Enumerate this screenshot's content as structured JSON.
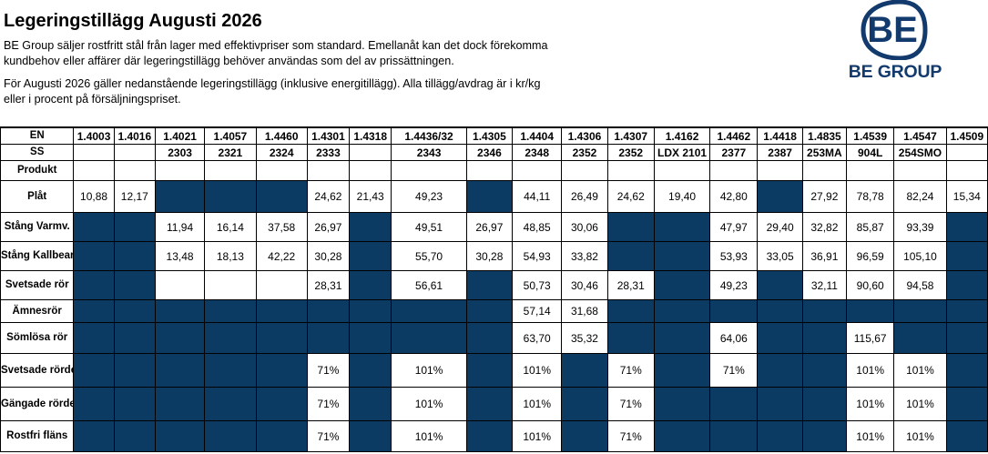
{
  "header": {
    "title": "Legeringstillägg Augusti 2026",
    "intro1": "BE Group säljer rostfritt stål från lager med effektivpriser som standard. Emellanåt kan det dock förekomma kundbehov eller affärer där legeringstillägg behöver användas som del av prissättningen.",
    "intro2": "För Augusti 2026 gäller nedanstående legeringstillägg (inklusive energitillägg). Alla tillägg/avdrag är i kr/kg eller i procent på försäljningspriset."
  },
  "logo": {
    "mark": "BE",
    "text": "BE GROUP",
    "color": "#123a6d"
  },
  "table": {
    "en_label": "EN",
    "ss_label": "SS",
    "product_label": "Produkt",
    "fill_color": "#0b3a63",
    "columns": [
      {
        "en": "1.4003",
        "ss": ""
      },
      {
        "en": "1.4016",
        "ss": ""
      },
      {
        "en": "1.4021",
        "ss": "2303"
      },
      {
        "en": "1.4057",
        "ss": "2321"
      },
      {
        "en": "1.4460",
        "ss": "2324"
      },
      {
        "en": "1.4301",
        "ss": "2333"
      },
      {
        "en": "1.4318",
        "ss": ""
      },
      {
        "en": "1.4436/32",
        "ss": "2343"
      },
      {
        "en": "1.4305",
        "ss": "2346"
      },
      {
        "en": "1.4404",
        "ss": "2348"
      },
      {
        "en": "1.4306",
        "ss": "2352"
      },
      {
        "en": "1.4307",
        "ss": "2352"
      },
      {
        "en": "1.4162",
        "ss": "LDX 2101"
      },
      {
        "en": "1.4462",
        "ss": "2377"
      },
      {
        "en": "1.4418",
        "ss": "2387"
      },
      {
        "en": "1.4835",
        "ss": "253MA"
      },
      {
        "en": "1.4539",
        "ss": "904L"
      },
      {
        "en": "1.4547",
        "ss": "254SMO"
      },
      {
        "en": "1.4509",
        "ss": ""
      }
    ],
    "rows": [
      {
        "cls": "r-plat",
        "label": "Plåt",
        "cells": [
          "10,88",
          "12,17",
          null,
          null,
          null,
          "24,62",
          "21,43",
          "49,23",
          null,
          "44,11",
          "26,49",
          "24,62",
          "19,40",
          "42,80",
          null,
          "27,92",
          "78,78",
          "82,24",
          "15,34"
        ]
      },
      {
        "cls": "r-stv",
        "label": "Stång Varmv.",
        "cells": [
          null,
          null,
          "11,94",
          "16,14",
          "37,58",
          "26,97",
          null,
          "49,51",
          "26,97",
          "48,85",
          "30,06",
          null,
          null,
          "47,97",
          "29,40",
          "32,82",
          "85,87",
          "93,39",
          null
        ]
      },
      {
        "cls": "r-stk",
        "label": "Stång Kallbearb.",
        "cells": [
          null,
          null,
          "13,48",
          "18,13",
          "42,22",
          "30,28",
          null,
          "55,70",
          "30,28",
          "54,93",
          "33,82",
          null,
          null,
          "53,93",
          "33,05",
          "36,91",
          "96,59",
          "105,10",
          null
        ]
      },
      {
        "cls": "r-svr",
        "label": "Svetsade rör",
        "cells": [
          null,
          null,
          "",
          "",
          "",
          "28,31",
          null,
          "56,61",
          null,
          "50,73",
          "30,46",
          "28,31",
          null,
          "49,23",
          null,
          "32,11",
          "90,60",
          "94,58",
          null
        ]
      },
      {
        "cls": "r-amn",
        "label": "Ämnesrör",
        "cells": [
          null,
          null,
          null,
          null,
          null,
          null,
          null,
          null,
          null,
          "57,14",
          "31,68",
          null,
          null,
          null,
          null,
          null,
          null,
          null,
          null
        ]
      },
      {
        "cls": "r-som",
        "label": "Sömlösa rör",
        "cells": [
          null,
          null,
          null,
          null,
          null,
          null,
          null,
          null,
          null,
          "63,70",
          "35,32",
          null,
          null,
          "64,06",
          null,
          null,
          "115,67",
          null,
          null
        ]
      },
      {
        "cls": "r-svd",
        "label": "Svetsade rördelar",
        "cells": [
          null,
          null,
          null,
          null,
          null,
          "71%",
          null,
          "101%",
          null,
          "101%",
          null,
          "71%",
          null,
          "71%",
          null,
          null,
          "101%",
          "101%",
          null
        ]
      },
      {
        "cls": "r-gan",
        "label": "Gängade rördelar",
        "cells": [
          null,
          null,
          null,
          null,
          null,
          "71%",
          null,
          "101%",
          null,
          "101%",
          null,
          "71%",
          null,
          null,
          null,
          null,
          "101%",
          "101%",
          null
        ]
      },
      {
        "cls": "r-fla",
        "label": "Rostfri fläns",
        "cells": [
          null,
          null,
          null,
          null,
          null,
          "71%",
          null,
          "101%",
          null,
          "101%",
          null,
          "71%",
          null,
          null,
          null,
          null,
          "101%",
          "101%",
          null
        ]
      }
    ]
  }
}
